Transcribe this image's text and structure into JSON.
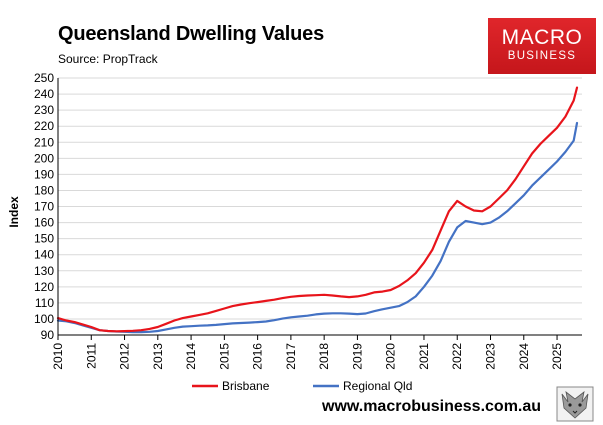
{
  "header": {
    "title": "Queensland Dwelling Values",
    "source": "Source: PropTrack"
  },
  "logo": {
    "line1": "MACRO",
    "line2": "BUSINESS"
  },
  "footer": {
    "url": "www.macrobusiness.com.au"
  },
  "colors": {
    "brisbane": "#e8141b",
    "regional": "#4472c4",
    "grid": "#d9d9d9",
    "logo": "#d41f24"
  },
  "chart_data": {
    "type": "line",
    "title": "Queensland Dwelling Values",
    "subtitle": "Source: PropTrack",
    "ylabel": "Index",
    "xlabel": "",
    "ylim": [
      90,
      250
    ],
    "yticks": [
      90,
      100,
      110,
      120,
      130,
      140,
      150,
      160,
      170,
      180,
      190,
      200,
      210,
      220,
      230,
      240,
      250
    ],
    "xlim": [
      2010,
      2025.75
    ],
    "xticks": [
      2010,
      2011,
      2012,
      2013,
      2014,
      2015,
      2016,
      2017,
      2018,
      2019,
      2020,
      2021,
      2022,
      2023,
      2024,
      2025
    ],
    "xtick_labels": [
      "2010",
      "2011",
      "2012",
      "2013",
      "2014",
      "2015",
      "2016",
      "2017",
      "2018",
      "2019",
      "2020",
      "2021",
      "2022",
      "2023",
      "2024",
      "2025"
    ],
    "grid": true,
    "legend_position": "bottom",
    "series": [
      {
        "name": "Brisbane",
        "color": "#e8141b",
        "x": [
          2010,
          2010.25,
          2010.5,
          2010.75,
          2011,
          2011.25,
          2011.5,
          2011.75,
          2012,
          2012.25,
          2012.5,
          2012.75,
          2013,
          2013.25,
          2013.5,
          2013.75,
          2014,
          2014.25,
          2014.5,
          2014.75,
          2015,
          2015.25,
          2015.5,
          2015.75,
          2016,
          2016.25,
          2016.5,
          2016.75,
          2017,
          2017.25,
          2017.5,
          2017.75,
          2018,
          2018.25,
          2018.5,
          2018.75,
          2019,
          2019.25,
          2019.5,
          2019.75,
          2020,
          2020.25,
          2020.5,
          2020.75,
          2021,
          2021.25,
          2021.5,
          2021.75,
          2022,
          2022.25,
          2022.5,
          2022.75,
          2023,
          2023.25,
          2023.5,
          2023.75,
          2024,
          2024.25,
          2024.5,
          2024.75,
          2025,
          2025.25,
          2025.5,
          2025.6
        ],
        "values": [
          100.5,
          99,
          98,
          96.5,
          95,
          93,
          92.5,
          92.3,
          92.4,
          92.6,
          93,
          93.8,
          95,
          97,
          99,
          100.5,
          101.5,
          102.5,
          103.5,
          105,
          106.5,
          108,
          109,
          109.8,
          110.5,
          111.2,
          112,
          113,
          113.8,
          114.3,
          114.6,
          114.8,
          115,
          114.6,
          114,
          113.6,
          114,
          115,
          116.5,
          117,
          118,
          120.5,
          124,
          128.5,
          135,
          143,
          155,
          167,
          173.5,
          170,
          167.5,
          167,
          170,
          175,
          180,
          187,
          195,
          203,
          209,
          214,
          219,
          226,
          236,
          244
        ]
      },
      {
        "name": "Regional Qld",
        "color": "#4472c4",
        "x": [
          2010,
          2010.25,
          2010.5,
          2010.75,
          2011,
          2011.25,
          2011.5,
          2011.75,
          2012,
          2012.25,
          2012.5,
          2012.75,
          2013,
          2013.25,
          2013.5,
          2013.75,
          2014,
          2014.25,
          2014.5,
          2014.75,
          2015,
          2015.25,
          2015.5,
          2015.75,
          2016,
          2016.25,
          2016.5,
          2016.75,
          2017,
          2017.25,
          2017.5,
          2017.75,
          2018,
          2018.25,
          2018.5,
          2018.75,
          2019,
          2019.25,
          2019.5,
          2019.75,
          2020,
          2020.25,
          2020.5,
          2020.75,
          2021,
          2021.25,
          2021.5,
          2021.75,
          2022,
          2022.25,
          2022.5,
          2022.75,
          2023,
          2023.25,
          2023.5,
          2023.75,
          2024,
          2024.25,
          2024.5,
          2024.75,
          2025,
          2025.25,
          2025.5,
          2025.6
        ],
        "values": [
          99,
          98.5,
          97.5,
          96,
          94.5,
          93,
          92.5,
          92.2,
          92,
          91.8,
          91.8,
          92,
          92.5,
          93.5,
          94.5,
          95.2,
          95.5,
          95.8,
          96,
          96.3,
          96.8,
          97.2,
          97.5,
          97.7,
          98,
          98.4,
          99.2,
          100.2,
          101,
          101.5,
          102,
          102.8,
          103.3,
          103.5,
          103.5,
          103.3,
          103,
          103.4,
          104.8,
          106,
          107,
          108,
          110.5,
          114,
          120,
          127,
          136,
          148,
          157,
          161,
          160,
          159,
          160,
          163,
          167,
          172,
          177,
          183,
          188,
          193,
          198,
          204,
          211,
          222
        ]
      }
    ]
  }
}
